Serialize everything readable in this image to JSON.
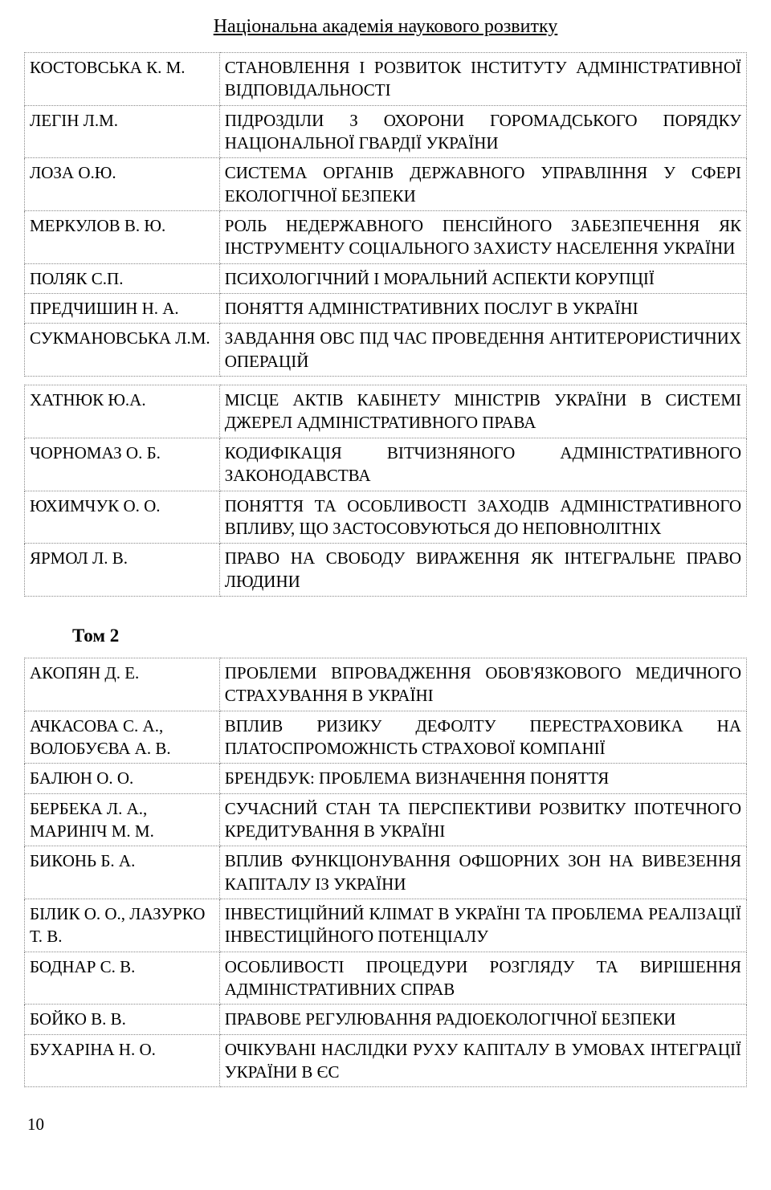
{
  "header": "Національна академія наукового розвитку",
  "section2_title": "Том 2",
  "page_number": "10",
  "table1": [
    {
      "author": "КОСТОВСЬКА К. М.",
      "desc": "СТАНОВЛЕННЯ І РОЗВИТОК ІНСТИТУТУ АДМІНІСТРАТИВНОЇ ВІДПОВІДАЛЬНОСТІ"
    },
    {
      "author": "ЛЕГІН Л.М.",
      "desc": "ПІДРОЗДІЛИ З ОХОРОНИ ГОРОМАДСЬКОГО ПОРЯДКУ НАЦІОНАЛЬНОЇ ГВАРДІЇ УКРАЇНИ"
    },
    {
      "author": "ЛОЗА О.Ю.",
      "desc": "СИСТЕМА ОРГАНІВ ДЕРЖАВНОГО УПРАВЛІННЯ У СФЕРІ ЕКОЛОГІЧНОЇ БЕЗПЕКИ"
    },
    {
      "author": "МЕРКУЛОВ В. Ю.",
      "desc": "РОЛЬ НЕДЕРЖАВНОГО ПЕНСІЙНОГО ЗАБЕЗПЕЧЕННЯ ЯК ІНСТРУМЕНТУ СОЦІАЛЬНОГО ЗАХИСТУ НАСЕЛЕННЯ УКРАЇНИ"
    },
    {
      "author": "ПОЛЯК С.П.",
      "desc": "ПСИХОЛОГІЧНИЙ І МОРАЛЬНИЙ АСПЕКТИ КОРУПЦІЇ"
    },
    {
      "author": "ПРЕДЧИШИН Н. А.",
      "desc": "ПОНЯТТЯ АДМІНІСТРАТИВНИХ ПОСЛУГ В УКРАЇНІ"
    },
    {
      "author": "СУКМАНОВСЬКА Л.М.",
      "desc": "ЗАВДАННЯ ОВС ПІД ЧАС ПРОВЕДЕННЯ АНТИТЕРОРИСТИЧНИХ ОПЕРАЦІЙ"
    }
  ],
  "table1b": [
    {
      "author": "ХАТНЮК Ю.А.",
      "desc": "МІСЦЕ АКТІВ КАБІНЕТУ МІНІСТРІВ УКРАЇНИ В СИСТЕМІ ДЖЕРЕЛ АДМІНІСТРАТИВНОГО ПРАВА"
    },
    {
      "author": "ЧОРНОМАЗ О. Б.",
      "desc": "КОДИФІКАЦІЯ ВІТЧИЗНЯНОГО АДМІНІСТРАТИВНОГО ЗАКОНОДАВСТВА"
    },
    {
      "author": "ЮХИМЧУК О. О.",
      "desc": "ПОНЯТТЯ ТА ОСОБЛИВОСТІ ЗАХОДІВ АДМІНІСТРАТИВНОГО ВПЛИВУ, ЩО ЗАСТОСОВУЮТЬСЯ ДО НЕПОВНОЛІТНІХ"
    },
    {
      "author": "ЯРМОЛ Л. В.",
      "desc": "ПРАВО НА СВОБОДУ ВИРАЖЕННЯ ЯК ІНТЕГРАЛЬНЕ ПРАВО ЛЮДИНИ"
    }
  ],
  "table2": [
    {
      "author": "АКОПЯН Д. Е.",
      "desc": "ПРОБЛЕМИ ВПРОВАДЖЕННЯ ОБОВ'ЯЗКОВОГО МЕДИЧНОГО СТРАХУВАННЯ В УКРАЇНІ"
    },
    {
      "author": "АЧКАСОВА С. А., ВОЛОБУЄВА А. В.",
      "desc": "ВПЛИВ РИЗИКУ ДЕФОЛТУ ПЕРЕСТРАХОВИКА НА ПЛАТОСПРОМОЖНІСТЬ СТРАХОВОЇ КОМПАНІЇ"
    },
    {
      "author": "БАЛЮН О. О.",
      "desc": "БРЕНДБУК: ПРОБЛЕМА ВИЗНАЧЕННЯ ПОНЯТТЯ"
    },
    {
      "author": "БЕРБЕКА Л. А., МАРИНІЧ М. М.",
      "desc": "СУЧАСНИЙ СТАН ТА ПЕРСПЕКТИВИ РОЗВИТКУ ІПОТЕЧНОГО КРЕДИТУВАННЯ В УКРАЇНІ"
    },
    {
      "author": "БИКОНЬ Б. А.",
      "desc": "ВПЛИВ ФУНКЦІОНУВАННЯ ОФШОРНИХ ЗОН НА ВИВЕЗЕННЯ КАПІТАЛУ ІЗ УКРАЇНИ"
    },
    {
      "author": "БІЛИК О. О., ЛАЗУРКО Т. В.",
      "desc": "ІНВЕСТИЦІЙНИЙ КЛІМАТ В УКРАЇНІ ТА ПРОБЛЕМА РЕАЛІЗАЦІЇ ІНВЕСТИЦІЙНОГО ПОТЕНЦІАЛУ"
    },
    {
      "author": "БОДНАР С. В.",
      "desc": "ОСОБЛИВОСТІ ПРОЦЕДУРИ РОЗГЛЯДУ ТА ВИРІШЕННЯ АДМІНІСТРАТИВНИХ СПРАВ"
    },
    {
      "author": "БОЙКО В. В.",
      "desc": "ПРАВОВЕ РЕГУЛЮВАННЯ РАДІОЕКОЛОГІЧНОЇ БЕЗПЕКИ"
    },
    {
      "author": "БУХАРІНА Н. О.",
      "desc": "ОЧІКУВАНІ НАСЛІДКИ РУХУ КАПІТАЛУ В УМОВАХ ІНТЕГРАЦІЇ УКРАЇНИ В ЄС"
    }
  ]
}
